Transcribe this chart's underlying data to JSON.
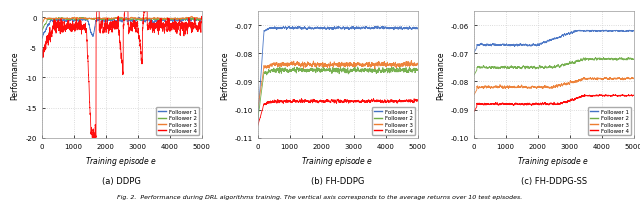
{
  "fig_width": 6.4,
  "fig_height": 2.01,
  "dpi": 100,
  "n_episodes": 5000,
  "subplot_titles": [
    "(a) DDPG",
    "(b) FH-DDPG",
    "(c) FH-DDPG-SS"
  ],
  "xlabel": "Training episode $e$",
  "ylabel": "Performance",
  "legend_labels": [
    "Follower 1",
    "Follower 2",
    "Follower 3",
    "Follower 4"
  ],
  "colors": [
    "#4472C4",
    "#70AD47",
    "#ED7D31",
    "#FF0000"
  ],
  "ddpg_ylim": [
    -20,
    1
  ],
  "fhddpg_ylim": [
    -0.11,
    -0.065
  ],
  "fhddpgss_ylim": [
    -0.1,
    -0.055
  ],
  "ddpg_yticks": [
    0,
    -5,
    -10,
    -15,
    -20
  ],
  "fhddpg_yticks": [
    -0.07,
    -0.08,
    -0.09,
    -0.1,
    -0.11
  ],
  "fhddpgss_yticks": [
    -0.06,
    -0.07,
    -0.08,
    -0.09,
    -0.1
  ],
  "background_color": "#ffffff",
  "grid_color": "#d0d0d0",
  "seed": 42,
  "caption": "Fig. 2.  Performance during DRL algorithms training. The vertical axis corresponds to the average returns over 10 test episodes."
}
